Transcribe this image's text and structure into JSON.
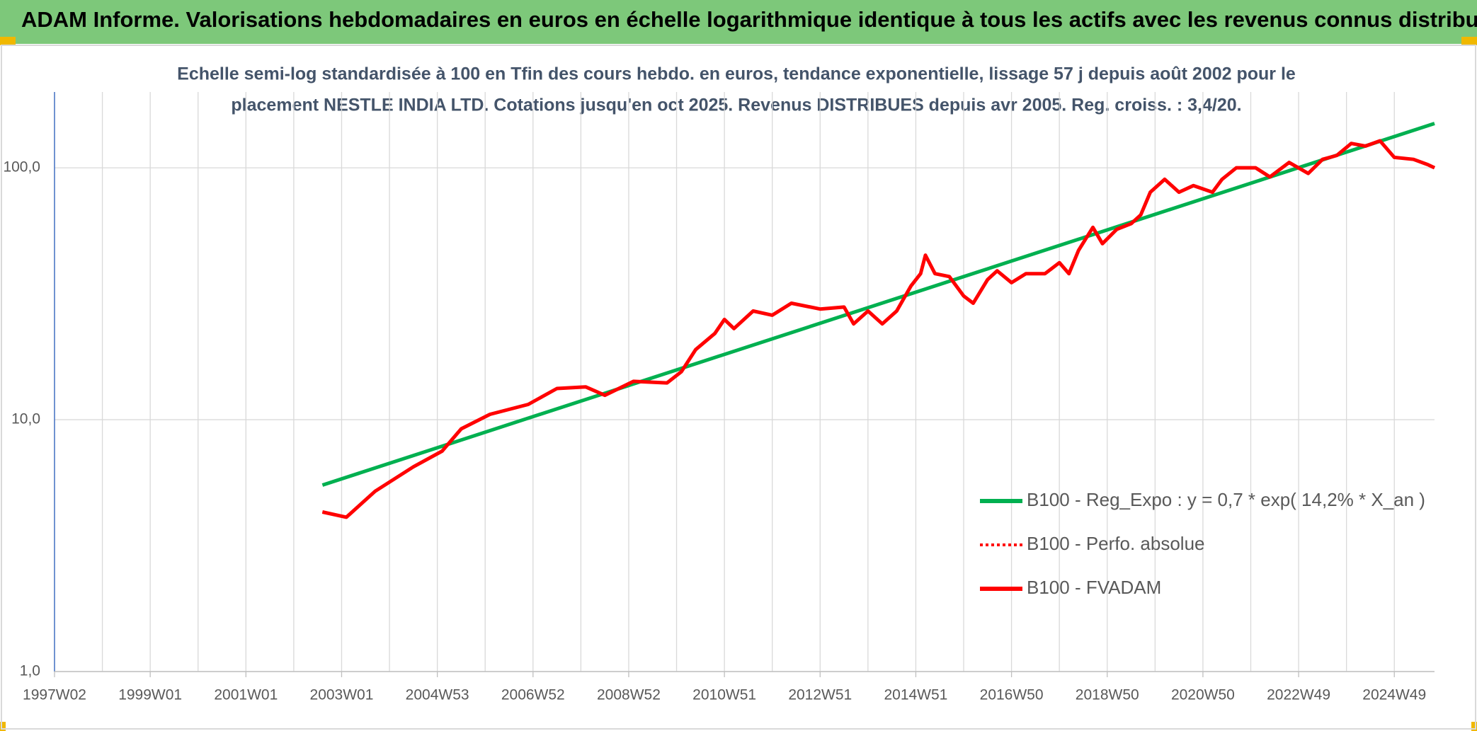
{
  "header": {
    "title": "ADAM Informe. Valorisations hebdomadaires en euros en échelle logarithmique identique à tous les actifs avec les revenus connus distribués"
  },
  "chart_data": {
    "type": "line",
    "subtitle": [
      "Echelle semi-log standardisée à 100 en Tfin des cours hebdo. en euros, tendance exponentielle, lissage 57 j depuis août 2002 pour le",
      "placement NESTLE INDIA LTD. Cotations jusqu'en oct 2025. Revenus DISTRIBUES depuis avr 2005. Reg. croiss. : 3,4/20."
    ],
    "log_y": true,
    "grid": true,
    "legend": "bottom-right",
    "xlim": [
      1997,
      2025.84
    ],
    "xticks": [
      {
        "value": 1997,
        "label": "1997W02"
      },
      {
        "value": 1999,
        "label": "1999W01"
      },
      {
        "value": 2001,
        "label": "2001W01"
      },
      {
        "value": 2003,
        "label": "2003W01"
      },
      {
        "value": 2005,
        "label": "2004W53"
      },
      {
        "value": 2007,
        "label": "2006W52"
      },
      {
        "value": 2009,
        "label": "2008W52"
      },
      {
        "value": 2011,
        "label": "2010W51"
      },
      {
        "value": 2013,
        "label": "2012W51"
      },
      {
        "value": 2015,
        "label": "2014W51"
      },
      {
        "value": 2017,
        "label": "2016W50"
      },
      {
        "value": 2019,
        "label": "2018W50"
      },
      {
        "value": 2021,
        "label": "2020W50"
      },
      {
        "value": 2023,
        "label": "2022W49"
      },
      {
        "value": 2025,
        "label": "2024W49"
      }
    ],
    "ylim": [
      1,
      200
    ],
    "yticks": [
      {
        "value": 1,
        "label": "1,0"
      },
      {
        "value": 10,
        "label": "10,0"
      },
      {
        "value": 100,
        "label": "100,0"
      }
    ],
    "series": [
      {
        "name": "B100 - Reg_Expo : y = 0,7 * exp( 14,2% *  X_an )",
        "color": "#00b050",
        "style": "solid",
        "x": [
          2002.6,
          2025.84
        ],
        "values": [
          5.5,
          150
        ]
      },
      {
        "name": "B100 - Perfo. absolue",
        "color": "#ff0000",
        "style": "dotted",
        "x": [
          2002.6,
          2003.1,
          2003.7,
          2004.5,
          2005.1,
          2005.5,
          2006.1,
          2006.9,
          2007.5,
          2008.1,
          2008.5,
          2009.1,
          2009.8,
          2010.1,
          2010.4,
          2010.8,
          2011.0,
          2011.2,
          2011.6,
          2012.0,
          2012.4,
          2013.0,
          2013.5,
          2013.7,
          2014.0,
          2014.3,
          2014.6,
          2014.9,
          2015.1,
          2015.2,
          2015.4,
          2015.7,
          2016.0,
          2016.2,
          2016.5,
          2016.7,
          2017.0,
          2017.3,
          2017.7,
          2018.0,
          2018.2,
          2018.4,
          2018.7,
          2018.9,
          2019.2,
          2019.5,
          2019.7,
          2019.9,
          2020.2,
          2020.5,
          2020.8,
          2021.2,
          2021.4,
          2021.7,
          2022.1,
          2022.4,
          2022.8,
          2023.2,
          2023.5,
          2023.8,
          2024.1,
          2024.4,
          2024.7,
          2025.0,
          2025.4,
          2025.7,
          2025.84
        ],
        "values": [
          4.3,
          4.1,
          5.2,
          6.5,
          7.5,
          9.2,
          10.5,
          11.5,
          13.3,
          13.5,
          12.5,
          14.2,
          14.0,
          15.5,
          19,
          22,
          25,
          23,
          27,
          26,
          29,
          27.5,
          28,
          24,
          27,
          24,
          27,
          34,
          38,
          45,
          38,
          37,
          31,
          29,
          36,
          39,
          35,
          38,
          38,
          42,
          38,
          47,
          58,
          50,
          57,
          60,
          65,
          80,
          90,
          80,
          85,
          80,
          90,
          100,
          100,
          92,
          105,
          95,
          108,
          112,
          125,
          122,
          128,
          110,
          108,
          103,
          100
        ]
      },
      {
        "name": "B100 - FVADAM",
        "color": "#ff0000",
        "style": "solid",
        "x": [
          2002.6,
          2003.1,
          2003.7,
          2004.5,
          2005.1,
          2005.5,
          2006.1,
          2006.9,
          2007.5,
          2008.1,
          2008.5,
          2009.1,
          2009.8,
          2010.1,
          2010.4,
          2010.8,
          2011.0,
          2011.2,
          2011.6,
          2012.0,
          2012.4,
          2013.0,
          2013.5,
          2013.7,
          2014.0,
          2014.3,
          2014.6,
          2014.9,
          2015.1,
          2015.2,
          2015.4,
          2015.7,
          2016.0,
          2016.2,
          2016.5,
          2016.7,
          2017.0,
          2017.3,
          2017.7,
          2018.0,
          2018.2,
          2018.4,
          2018.7,
          2018.9,
          2019.2,
          2019.5,
          2019.7,
          2019.9,
          2020.2,
          2020.5,
          2020.8,
          2021.2,
          2021.4,
          2021.7,
          2022.1,
          2022.4,
          2022.8,
          2023.2,
          2023.5,
          2023.8,
          2024.1,
          2024.4,
          2024.7,
          2025.0,
          2025.4,
          2025.7,
          2025.84
        ],
        "values": [
          4.3,
          4.1,
          5.2,
          6.5,
          7.5,
          9.2,
          10.5,
          11.5,
          13.3,
          13.5,
          12.5,
          14.2,
          14.0,
          15.5,
          19,
          22,
          25,
          23,
          27,
          26,
          29,
          27.5,
          28,
          24,
          27,
          24,
          27,
          34,
          38,
          45,
          38,
          37,
          31,
          29,
          36,
          39,
          35,
          38,
          38,
          42,
          38,
          47,
          58,
          50,
          57,
          60,
          65,
          80,
          90,
          80,
          85,
          80,
          90,
          100,
          100,
          92,
          105,
          95,
          108,
          112,
          125,
          122,
          128,
          110,
          108,
          103,
          100
        ]
      }
    ]
  }
}
